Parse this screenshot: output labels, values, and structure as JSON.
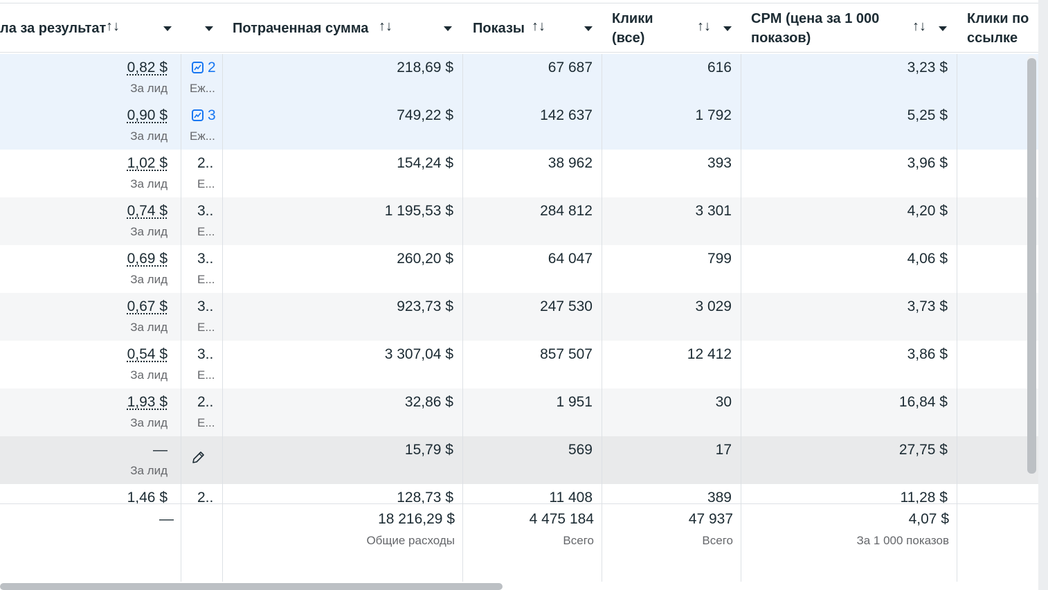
{
  "headers": {
    "cost_per_result": "ла за результат",
    "spent": "Потраченная сумма",
    "impressions": "Показы",
    "clicks_all": [
      "Клики",
      "(все)"
    ],
    "cpm": [
      "CPM (цена за 1 000",
      "показов)"
    ],
    "link_clicks": [
      "Клики по",
      "ссылке"
    ],
    "sort_glyph": "↑↓"
  },
  "rows": [
    {
      "cpr": "0,82 $",
      "cpr_sub": "За лид",
      "delivery": "2",
      "delivery_sub": "Еж...",
      "icon": "trend-icon",
      "spent": "218,69 $",
      "impr": "67 687",
      "clicks": "616",
      "cpm": "3,23 $",
      "bg": "#ebf3fc"
    },
    {
      "cpr": "0,90 $",
      "cpr_sub": "За лид",
      "delivery": "3",
      "delivery_sub": "Еж...",
      "icon": "trend-icon",
      "spent": "749,22 $",
      "impr": "142 637",
      "clicks": "1 792",
      "cpm": "5,25 $",
      "bg": "#ebf3fc"
    },
    {
      "cpr": "1,02 $",
      "cpr_sub": "За лид",
      "delivery": "2..",
      "delivery_sub": "Е...",
      "spent": "154,24 $",
      "impr": "38 962",
      "clicks": "393",
      "cpm": "3,96 $",
      "bg": "#ffffff"
    },
    {
      "cpr": "0,74 $",
      "cpr_sub": "За лид",
      "delivery": "3..",
      "delivery_sub": "Е...",
      "spent": "1 195,53 $",
      "impr": "284 812",
      "clicks": "3 301",
      "cpm": "4,20 $",
      "bg": "#f5f6f7"
    },
    {
      "cpr": "0,69 $",
      "cpr_sub": "За лид",
      "delivery": "3..",
      "delivery_sub": "Е...",
      "spent": "260,20 $",
      "impr": "64 047",
      "clicks": "799",
      "cpm": "4,06 $",
      "bg": "#ffffff"
    },
    {
      "cpr": "0,67 $",
      "cpr_sub": "За лид",
      "delivery": "3..",
      "delivery_sub": "Е...",
      "spent": "923,73 $",
      "impr": "247 530",
      "clicks": "3 029",
      "cpm": "3,73 $",
      "bg": "#f5f6f7"
    },
    {
      "cpr": "0,54 $",
      "cpr_sub": "За лид",
      "delivery": "3..",
      "delivery_sub": "Е...",
      "spent": "3 307,04 $",
      "impr": "857 507",
      "clicks": "12 412",
      "cpm": "3,86 $",
      "bg": "#ffffff"
    },
    {
      "cpr": "1,93 $",
      "cpr_sub": "За лид",
      "delivery": "2..",
      "delivery_sub": "Е...",
      "spent": "32,86 $",
      "impr": "1 951",
      "clicks": "30",
      "cpm": "16,84 $",
      "bg": "#f5f6f7"
    },
    {
      "cpr": "—",
      "cpr_sub": "За лид",
      "delivery": "",
      "delivery_sub": "",
      "icon": "pencil-icon",
      "spent": "15,79 $",
      "impr": "569",
      "clicks": "17",
      "cpm": "27,75 $",
      "bg": "#e9eaeb"
    },
    {
      "cpr": "1,46 $",
      "cpr_sub": "",
      "delivery": "2..",
      "delivery_sub": "",
      "spent": "128,73 $",
      "impr": "11 408",
      "clicks": "389",
      "cpm": "11,28 $",
      "bg": "#ffffff"
    }
  ],
  "totals": {
    "cpr": "—",
    "spent": "18 216,29 $",
    "spent_sub": "Общие расходы",
    "impr": "4 475 184",
    "impr_sub": "Всего",
    "clicks": "47 937",
    "clicks_sub": "Всего",
    "cpm": "4,07 $",
    "cpm_sub": "За 1 000 показов"
  }
}
